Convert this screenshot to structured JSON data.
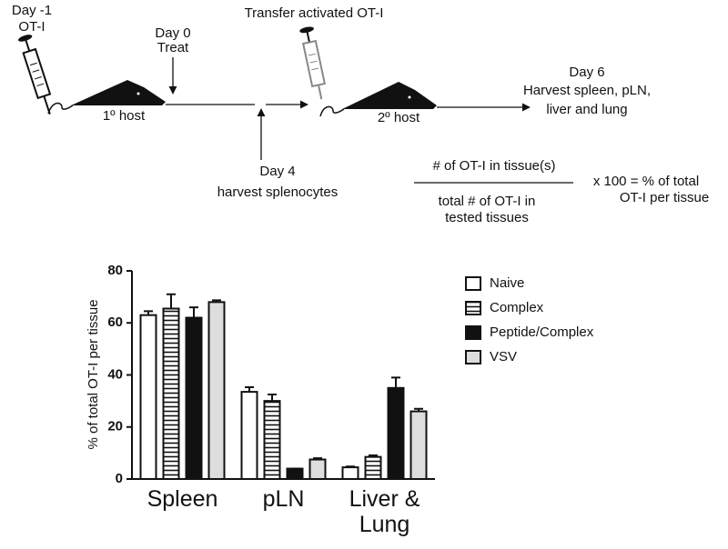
{
  "diagram": {
    "day_minus1": "Day -1",
    "ot1": "OT-I",
    "day0": "Day 0",
    "treat": "Treat",
    "transfer": "Transfer activated OT-I",
    "host1": "1º host",
    "host2": "2º host",
    "day4": "Day 4",
    "harvest_splenocytes": "harvest splenocytes",
    "day6": "Day 6",
    "harvest_line1": "Harvest spleen, pLN,",
    "harvest_line2": "liver and lung",
    "formula_numerator": "# of OT-I in tissue(s)",
    "formula_denominator_1": "total # of OT-I in",
    "formula_denominator_2": "tested tissues",
    "formula_result_1": "x 100 = % of total",
    "formula_result_2": "OT-I per tissue"
  },
  "chart_data": {
    "type": "bar",
    "ylabel": "% of total OT-I per tissue",
    "categories": [
      "Spleen",
      "pLN",
      "Liver & Lung"
    ],
    "ylim": [
      0,
      80
    ],
    "yticks": [
      0,
      20,
      40,
      60,
      80
    ],
    "series": [
      {
        "name": "Naive",
        "color": "#ffffff",
        "pattern": "none",
        "values": [
          63,
          33.5,
          4.5
        ],
        "errors": [
          1.5,
          1.8,
          0.3
        ]
      },
      {
        "name": "Complex",
        "color": "#ffffff",
        "pattern": "hstripes",
        "values": [
          65.5,
          30,
          8.5
        ],
        "errors": [
          5.5,
          2.5,
          0.6
        ]
      },
      {
        "name": "Peptide/Complex",
        "color": "#111111",
        "pattern": "none",
        "values": [
          62,
          4,
          35
        ],
        "errors": [
          4,
          0,
          4
        ]
      },
      {
        "name": "VSV",
        "color": "#dddddd",
        "pattern": "none",
        "values": [
          68,
          7.5,
          26
        ],
        "errors": [
          0.7,
          0.5,
          1
        ]
      }
    ]
  }
}
